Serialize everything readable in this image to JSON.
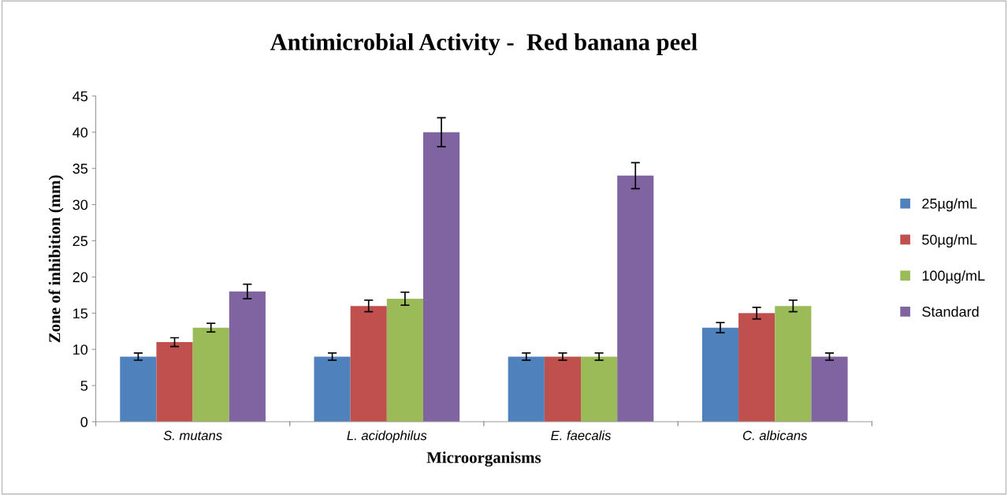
{
  "chart_data": {
    "type": "bar",
    "title": "Antimicrobial Activity -  Red banana peel",
    "xlabel": "Microorganisms",
    "ylabel": "Zone of inhibition (mm)",
    "categories": [
      "S. mutans",
      "L. acidophilus",
      "E. faecalis",
      "C. albicans"
    ],
    "series": [
      {
        "name": "25µg/mL",
        "color": "#4f81bd",
        "values": [
          9,
          9,
          9,
          13
        ],
        "errors": [
          0.5,
          0.5,
          0.5,
          0.7
        ]
      },
      {
        "name": "50µg/mL",
        "color": "#c0504d",
        "values": [
          11,
          16,
          9,
          15
        ],
        "errors": [
          0.6,
          0.8,
          0.5,
          0.8
        ]
      },
      {
        "name": "100µg/mL",
        "color": "#9bbb59",
        "values": [
          13,
          17,
          9,
          16
        ],
        "errors": [
          0.6,
          0.9,
          0.5,
          0.8
        ]
      },
      {
        "name": "Standard",
        "color": "#8064a2",
        "values": [
          18,
          40,
          34,
          9
        ],
        "errors": [
          1,
          2,
          1.8,
          0.5
        ]
      }
    ],
    "ylim": [
      0,
      45
    ],
    "yticks": [
      0,
      5,
      10,
      15,
      20,
      25,
      30,
      35,
      40,
      45
    ],
    "grid": false,
    "legend": "right"
  }
}
